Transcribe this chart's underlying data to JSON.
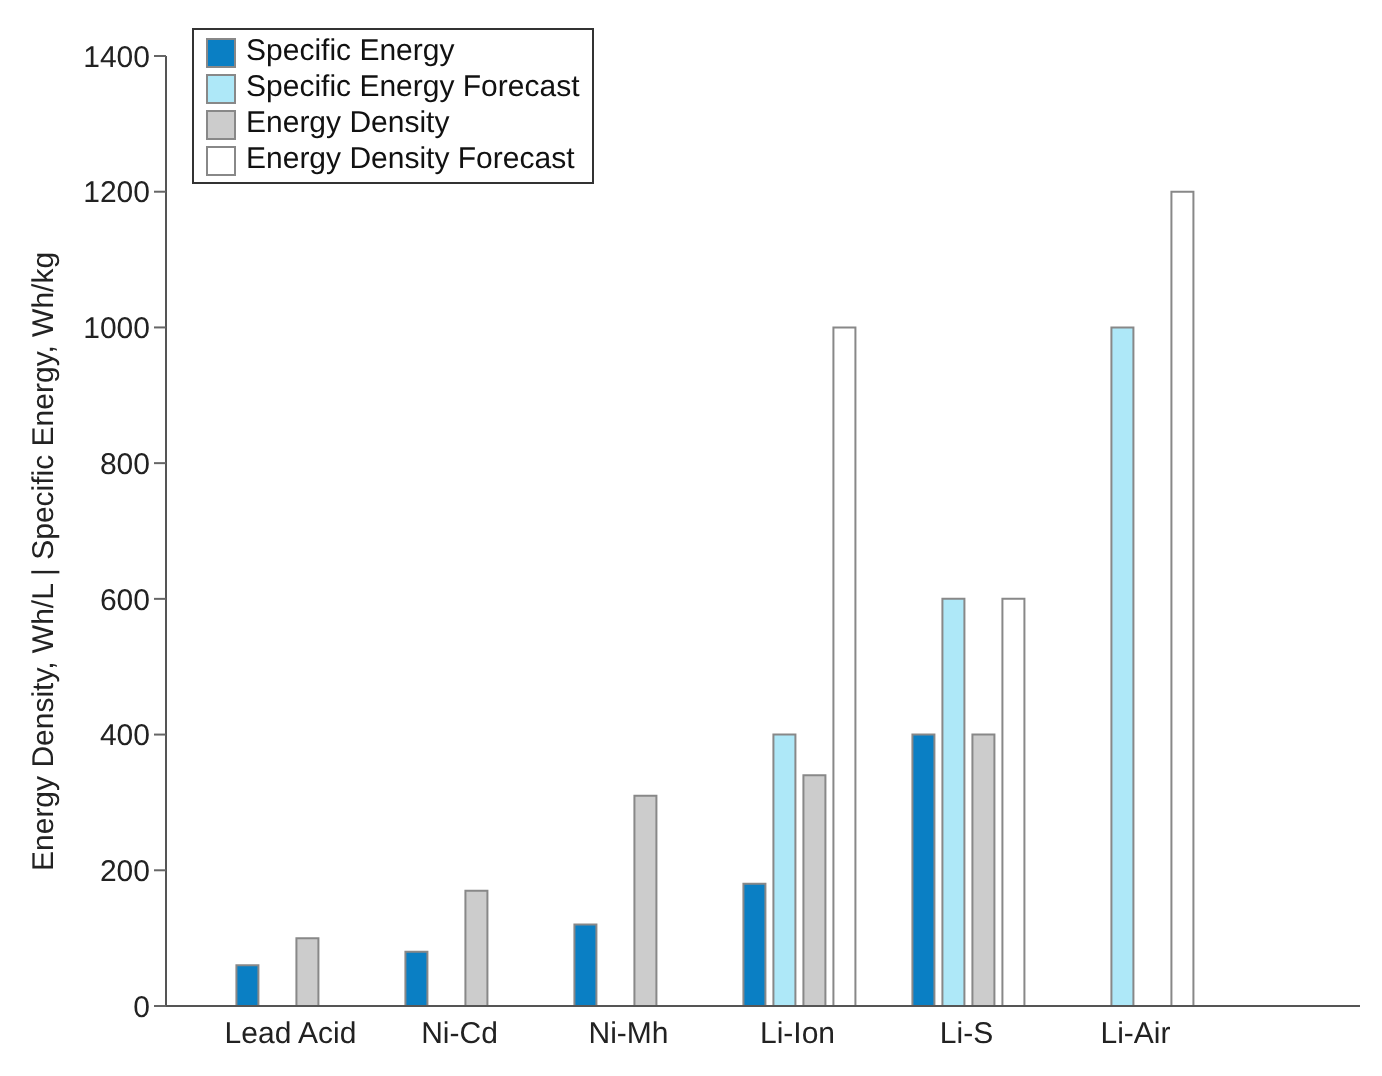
{
  "chart_data": {
    "type": "bar",
    "ylabel": "Energy Density, Wh/L | Specific Energy, Wh/kg",
    "categories": [
      "Lead Acid",
      "Ni-Cd",
      "Ni-Mh",
      "Li-Ion",
      "Li-S",
      "Li-Air"
    ],
    "series": [
      {
        "name": "Specific Energy",
        "color": "#0a7fc4",
        "values": [
          60,
          80,
          120,
          180,
          400,
          null
        ]
      },
      {
        "name": "Specific Energy Forecast",
        "color": "#aee8f8",
        "values": [
          null,
          null,
          null,
          400,
          600,
          1000
        ]
      },
      {
        "name": "Energy Density",
        "color": "#cccccc",
        "values": [
          100,
          170,
          310,
          340,
          400,
          null
        ]
      },
      {
        "name": "Energy Density Forecast",
        "color": "#ffffff",
        "values": [
          null,
          null,
          null,
          1000,
          600,
          1200
        ]
      }
    ],
    "ylim": [
      0,
      1400
    ],
    "yticks": [
      0,
      200,
      400,
      600,
      800,
      1000,
      1200,
      1400
    ],
    "grid": false,
    "legend": "top left"
  }
}
